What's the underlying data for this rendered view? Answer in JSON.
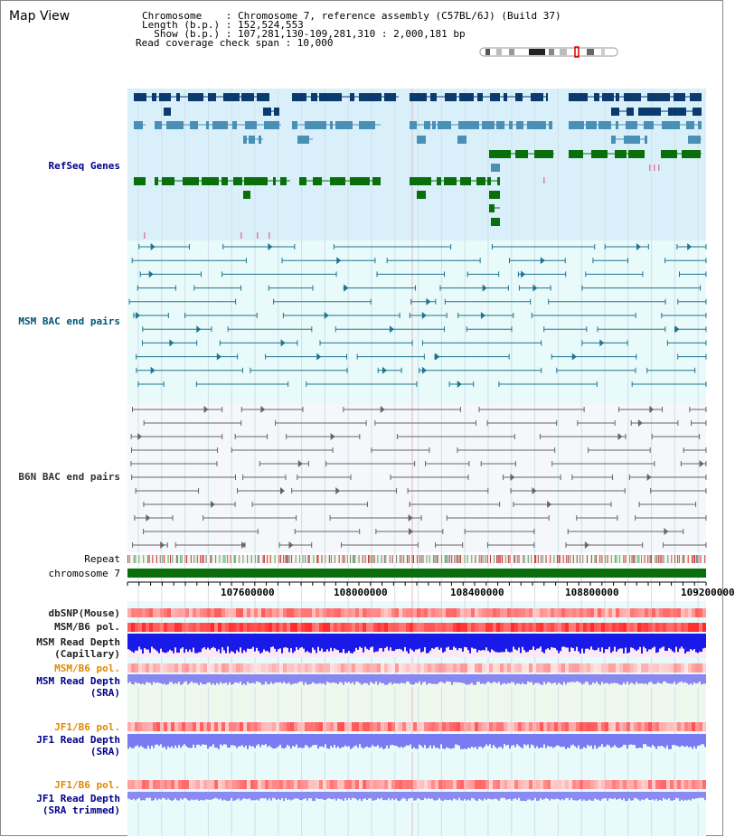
{
  "view_title": "Map View",
  "info": {
    "chromosome_line": "Chromosome    : Chromosome 7, reference assembly (C57BL/6J) (Build 37)",
    "length_line": "Length (b.p.) : 152,524,553",
    "show_line": "  Show (b.p.) : 107,281,130-109,281,310 : 2,000,181 bp",
    "coverage_line": "Read coverage check span : 10,000"
  },
  "tracks": {
    "refseq": "RefSeq Genes",
    "msm_bac": "MSM BAC end pairs",
    "b6n_bac": "B6N BAC end pairs",
    "repeat": "Repeat",
    "chromosome": "chromosome 7",
    "dbsnp": "dbSNP(Mouse)",
    "msm_b6_pol": "MSM/B6 pol.",
    "msm_depth_cap_1": "MSM Read Depth",
    "msm_depth_cap_2": "(Capillary)",
    "msm_b6_pol_2": "MSM/B6 pol.",
    "msm_depth_sra_1": "MSM Read Depth",
    "msm_depth_sra_2": "(SRA)",
    "jf1_b6_pol": "JF1/B6 pol.",
    "jf1_depth_sra_1": "JF1 Read Depth",
    "jf1_depth_sra_2": "(SRA)",
    "jf1_b6_pol_2": "JF1/B6 pol.",
    "jf1_depth_trim_1": "JF1 Read Depth",
    "jf1_depth_trim_2": "(SRA trimmed)"
  },
  "ticks": [
    "107600000",
    "108000000",
    "108400000",
    "108800000",
    "109200000"
  ],
  "colors": {
    "refseq_bg": "#d9f0fa",
    "msm_bac_bg": "#e8fafa",
    "b6n_bac_bg": "#f5f7fa",
    "lower_bg": "#e8fafa",
    "gene_navy": "#0a3a6e",
    "gene_teal": "#4a8fb5",
    "gene_green": "#0a6e0a",
    "msm_line": "#1f7490",
    "b6n_line": "#666666",
    "chromosome_bar": "#0a6e0a",
    "label_blue": "#00008b",
    "label_teal": "#005577",
    "label_orange": "#e08a00",
    "label_gray": "#222222"
  }
}
